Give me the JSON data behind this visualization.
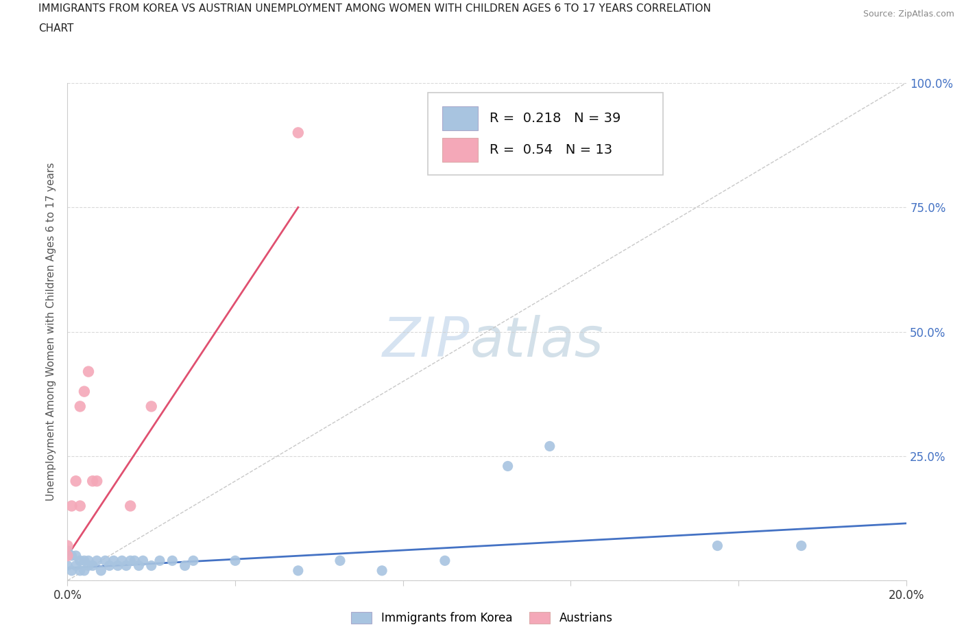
{
  "title_line1": "IMMIGRANTS FROM KOREA VS AUSTRIAN UNEMPLOYMENT AMONG WOMEN WITH CHILDREN AGES 6 TO 17 YEARS CORRELATION",
  "title_line2": "CHART",
  "source": "Source: ZipAtlas.com",
  "ylabel": "Unemployment Among Women with Children Ages 6 to 17 years",
  "xlim": [
    0.0,
    0.2
  ],
  "ylim": [
    0.0,
    1.0
  ],
  "korea_color": "#a8c4e0",
  "austria_color": "#f4a8b8",
  "korea_R": 0.218,
  "korea_N": 39,
  "austria_R": 0.54,
  "austria_N": 13,
  "korea_trend_color": "#4472c4",
  "austria_trend_color": "#e05070",
  "watermark": "ZIPatlas",
  "watermark_color": "#c8d8e8",
  "korea_x": [
    0.0,
    0.0,
    0.001,
    0.001,
    0.002,
    0.002,
    0.003,
    0.003,
    0.004,
    0.004,
    0.005,
    0.005,
    0.006,
    0.007,
    0.008,
    0.009,
    0.01,
    0.011,
    0.012,
    0.013,
    0.014,
    0.015,
    0.016,
    0.017,
    0.018,
    0.02,
    0.022,
    0.025,
    0.028,
    0.03,
    0.04,
    0.055,
    0.065,
    0.075,
    0.09,
    0.105,
    0.115,
    0.155,
    0.175
  ],
  "korea_y": [
    0.03,
    0.06,
    0.02,
    0.05,
    0.03,
    0.05,
    0.04,
    0.02,
    0.04,
    0.02,
    0.04,
    0.03,
    0.03,
    0.04,
    0.02,
    0.04,
    0.03,
    0.04,
    0.03,
    0.04,
    0.03,
    0.04,
    0.04,
    0.03,
    0.04,
    0.03,
    0.04,
    0.04,
    0.03,
    0.04,
    0.04,
    0.02,
    0.04,
    0.02,
    0.04,
    0.23,
    0.27,
    0.07,
    0.07
  ],
  "austria_x": [
    0.0,
    0.0,
    0.001,
    0.002,
    0.003,
    0.003,
    0.004,
    0.005,
    0.006,
    0.007,
    0.015,
    0.02,
    0.055
  ],
  "austria_y": [
    0.05,
    0.07,
    0.15,
    0.2,
    0.35,
    0.15,
    0.38,
    0.42,
    0.2,
    0.2,
    0.15,
    0.35,
    0.9
  ],
  "austria_trend_x": [
    0.0,
    0.055
  ],
  "austria_trend_y": [
    0.05,
    0.75
  ],
  "korea_trend_x": [
    0.0,
    0.2
  ],
  "korea_trend_y": [
    0.025,
    0.115
  ]
}
